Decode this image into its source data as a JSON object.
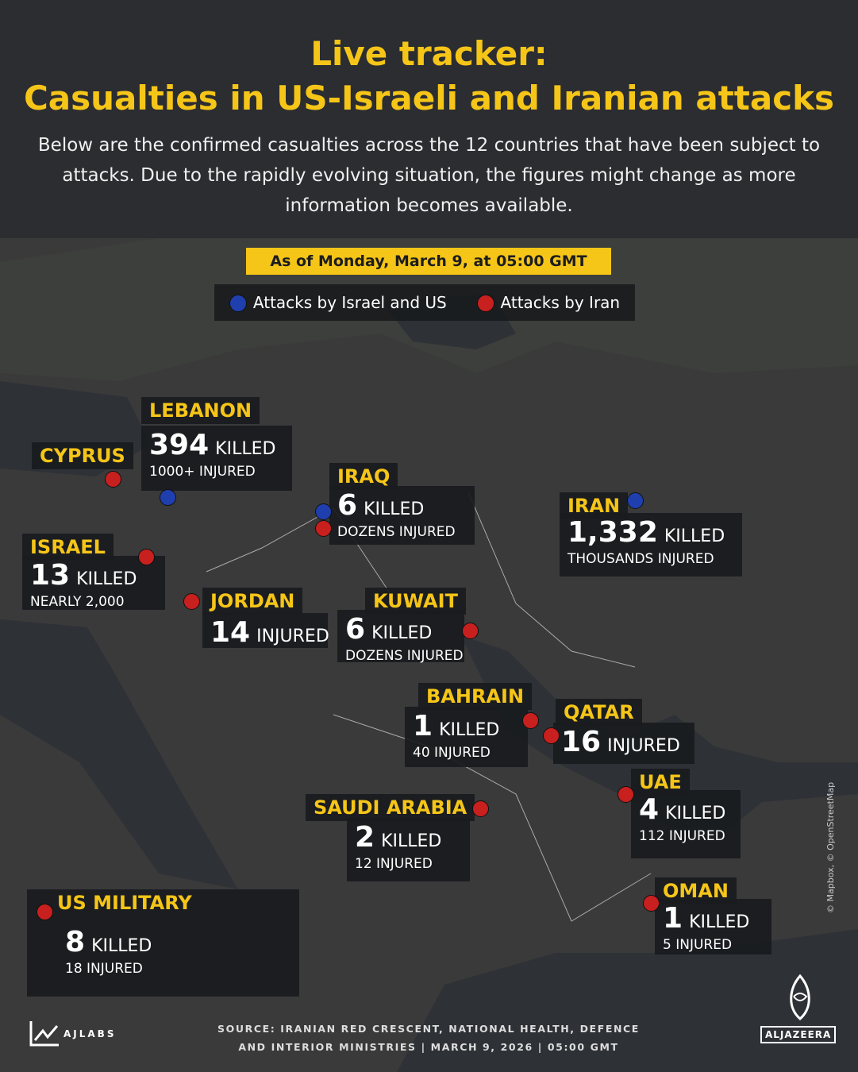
{
  "header": {
    "title_lines": [
      "Live tracker:",
      "Casualties in US-Israeli and Iranian attacks"
    ],
    "subtitle": "Below are the confirmed casualties across the 12 countries that have been subject to attacks. Due to the rapidly evolving situation, the figures might change as more information becomes available.",
    "date": "As of Monday, March 9, at 05:00 GMT"
  },
  "legend": [
    {
      "label": "Attacks by Israel and US",
      "color": "#1f3fae"
    },
    {
      "label": "Attacks by Iran",
      "color": "#c8201e"
    }
  ],
  "countries": [
    {
      "name": "LEBANON",
      "count": "394",
      "count_label": "KILLED",
      "detail": "1000+ INJURED",
      "dot_colors": [
        "#1f3fae"
      ]
    },
    {
      "name": "CYPRUS",
      "dot_colors": [
        "#c8201e"
      ]
    },
    {
      "name": "IRAQ",
      "count": "6",
      "count_label": "KILLED",
      "detail": "DOZENS INJURED",
      "dot_colors": [
        "#1f3fae",
        "#c8201e"
      ]
    },
    {
      "name": "IRAN",
      "count": "1,332",
      "count_label": "KILLED",
      "detail": "THOUSANDS INJURED",
      "dot_colors": [
        "#1f3fae"
      ]
    },
    {
      "name": "ISRAEL",
      "count": "13",
      "count_label": "KILLED",
      "detail": "NEARLY 2,000",
      "dot_colors": [
        "#c8201e"
      ]
    },
    {
      "name": "JORDAN",
      "count": "14",
      "count_label": "INJURED",
      "dot_colors": [
        "#c8201e"
      ]
    },
    {
      "name": "KUWAIT",
      "count": "6",
      "count_label": "KILLED",
      "detail": "DOZENS INJURED",
      "dot_colors": [
        "#c8201e"
      ]
    },
    {
      "name": "BAHRAIN",
      "count": "1",
      "count_label": "KILLED",
      "detail": "40 INJURED",
      "dot_colors": [
        "#c8201e"
      ]
    },
    {
      "name": "QATAR",
      "count": "16",
      "count_label": "INJURED",
      "dot_colors": [
        "#c8201e"
      ]
    },
    {
      "name": "UAE",
      "count": "4",
      "count_label": "KILLED",
      "detail": "112 INJURED",
      "dot_colors": [
        "#c8201e"
      ]
    },
    {
      "name": "SAUDI ARABIA",
      "count": "2",
      "count_label": "KILLED",
      "detail": "12 INJURED",
      "dot_colors": [
        "#c8201e"
      ]
    },
    {
      "name": "OMAN",
      "count": "1",
      "count_label": "KILLED",
      "detail": "5 INJURED",
      "dot_colors": [
        "#c8201e"
      ]
    },
    {
      "name": "US MILITARY",
      "count": "8",
      "count_label": "KILLED",
      "detail": "18 INJURED",
      "dot_colors": [
        "#c8201e"
      ]
    }
  ],
  "footer": {
    "source_lines": [
      "SOURCE:  IRANIAN RED CRESCENT, NATIONAL HEALTH, DEFENCE",
      "AND INTERIOR MINISTRIES   |   MARCH 9, 2026   |   05:00 GMT"
    ],
    "credit": "© Mapbox, © OpenStreetMap",
    "left_logo": "AJLABS",
    "right_logo": "ALJAZEERA"
  }
}
